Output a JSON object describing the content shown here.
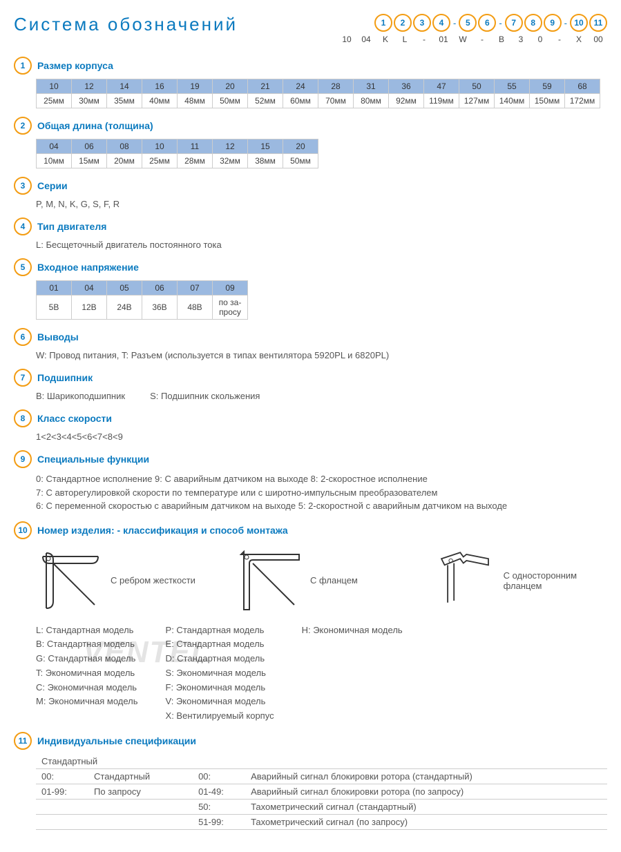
{
  "title": "Система обозначений",
  "code_positions": [
    "1",
    "2",
    "3",
    "4",
    "-",
    "5",
    "6",
    "-",
    "7",
    "8",
    "9",
    "-",
    "10",
    "11"
  ],
  "code_example": [
    "10",
    "04",
    "K",
    "L",
    "-",
    "01",
    "W",
    "-",
    "B",
    "3",
    "0",
    "-",
    "X",
    "00"
  ],
  "sections": {
    "s1": {
      "num": "1",
      "title": "Размер корпуса",
      "row1": [
        "10",
        "12",
        "14",
        "16",
        "19",
        "20",
        "21",
        "24",
        "28",
        "31",
        "36",
        "47",
        "50",
        "55",
        "59",
        "68"
      ],
      "row2": [
        "25мм",
        "30мм",
        "35мм",
        "40мм",
        "48мм",
        "50мм",
        "52мм",
        "60мм",
        "70мм",
        "80мм",
        "92мм",
        "119мм",
        "127мм",
        "140мм",
        "150мм",
        "172мм"
      ]
    },
    "s2": {
      "num": "2",
      "title": "Общая длина (толщина)",
      "row1": [
        "04",
        "06",
        "08",
        "10",
        "11",
        "12",
        "15",
        "20"
      ],
      "row2": [
        "10мм",
        "15мм",
        "20мм",
        "25мм",
        "28мм",
        "32мм",
        "38мм",
        "50мм"
      ]
    },
    "s3": {
      "num": "3",
      "title": "Серии",
      "text": "P, M, N, K, G, S, F, R"
    },
    "s4": {
      "num": "4",
      "title": "Тип двигателя",
      "text": "L: Бесщеточный двигатель постоянного тока"
    },
    "s5": {
      "num": "5",
      "title": "Входное напряжение",
      "row1": [
        "01",
        "04",
        "05",
        "06",
        "07",
        "09"
      ],
      "row2": [
        "5В",
        "12В",
        "24В",
        "36В",
        "48В",
        "по за-\nпросу"
      ]
    },
    "s6": {
      "num": "6",
      "title": "Выводы",
      "text": "W: Провод питания, T: Разъем (используется в типах вентилятора  5920PL и 6820PL)"
    },
    "s7": {
      "num": "7",
      "title": "Подшипник",
      "text": "B: Шарикоподшипник          S: Подшипник скольжения"
    },
    "s8": {
      "num": "8",
      "title": "Класс скорости",
      "text": "1<2<3<4<5<6<7<8<9"
    },
    "s9": {
      "num": "9",
      "title": "Специальные функции",
      "lines": [
        "0: Стандартное исполнение   9:  С аварийным датчиком на выходе   8: 2-скоростное исполнение",
        "7: С авторегулировкой скорости по температуре или с широтно-импульсным преобразователем",
        "6: С переменной скоростью с аварийным датчиком на выходе   5: 2-скоростной с аварийным датчиком на выходе"
      ]
    },
    "s10": {
      "num": "10",
      "title": "Номер изделия: - классификация  и способ монтажа",
      "mount_labels": [
        "С ребром жесткости",
        "С фланцем",
        "С односторонним фланцем"
      ],
      "col1": [
        "L:  Стандартная модель",
        "B:  Стандартная модель",
        "G:  Стандартная модель",
        "T:  Экономичная модель",
        "C:  Экономичная модель",
        "M:  Экономичная модель"
      ],
      "col2": [
        "P:  Стандартная модель",
        "E:  Стандартная модель",
        "D:  Стандартная модель",
        "S:  Экономичная модель",
        "F:  Экономичная модель",
        "V:  Экономичная модель",
        "X:  Вентилируемый корпус"
      ],
      "col3": [
        "H:  Экономичная модель"
      ]
    },
    "s11": {
      "num": "11",
      "title": "Индивидуальные спецификации",
      "left_head": "Стандартный",
      "left": [
        [
          "00:",
          "Стандартный"
        ],
        [
          "01-99:",
          "По запросу"
        ]
      ],
      "right": [
        [
          "00:",
          "Аварийный сигнал блокировки ротора (стандартный)"
        ],
        [
          "01-49:",
          "Аварийный сигнал блокировки ротора (по запросу)"
        ],
        [
          "50:",
          "Тахометрический сигнал (стандартный)"
        ],
        [
          "51-99:",
          "Тахометрический сигнал (по запросу)"
        ]
      ]
    }
  },
  "colors": {
    "accent": "#f39c12",
    "blue": "#0b7abf",
    "cell_bg": "#9bb9e0",
    "border": "#ccc"
  },
  "watermark": "VENTEL"
}
